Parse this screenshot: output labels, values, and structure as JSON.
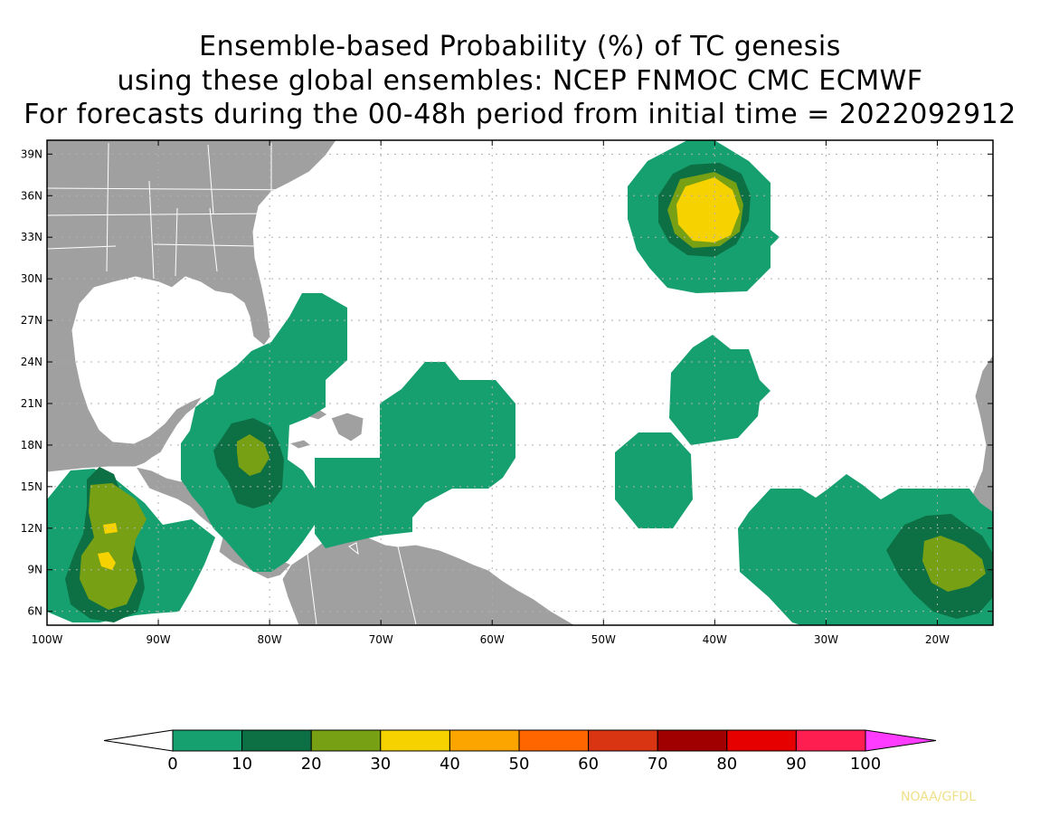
{
  "titles": {
    "line1": "Ensemble-based Probability (%) of TC genesis",
    "line2": "using these global ensembles:   NCEP FNMOC CMC ECMWF",
    "line3": "For forecasts during the 00-48h period from initial time = 2022092912"
  },
  "map": {
    "lon_range": [
      -100,
      -15
    ],
    "lat_range": [
      5,
      40
    ],
    "lat_ticks": [
      {
        "value": 39,
        "label": "39N"
      },
      {
        "value": 36,
        "label": "36N"
      },
      {
        "value": 33,
        "label": "33N"
      },
      {
        "value": 30,
        "label": "30N"
      },
      {
        "value": 27,
        "label": "27N"
      },
      {
        "value": 24,
        "label": "24N"
      },
      {
        "value": 21,
        "label": "21N"
      },
      {
        "value": 18,
        "label": "18N"
      },
      {
        "value": 15,
        "label": "15N"
      },
      {
        "value": 12,
        "label": "12N"
      },
      {
        "value": 9,
        "label": "9N"
      },
      {
        "value": 6,
        "label": "6N"
      }
    ],
    "lon_ticks": [
      {
        "value": -100,
        "label": "100W"
      },
      {
        "value": -90,
        "label": "90W"
      },
      {
        "value": -80,
        "label": "80W"
      },
      {
        "value": -70,
        "label": "70W"
      },
      {
        "value": -60,
        "label": "60W"
      },
      {
        "value": -50,
        "label": "50W"
      },
      {
        "value": -40,
        "label": "40W"
      },
      {
        "value": -30,
        "label": "30W"
      },
      {
        "value": -20,
        "label": "20W"
      }
    ],
    "land_color": "#a0a0a0",
    "grid": "dotted"
  },
  "colorbar": {
    "labels": [
      "0",
      "10",
      "20",
      "30",
      "40",
      "50",
      "60",
      "70",
      "80",
      "90",
      "100"
    ],
    "colors": [
      "#17a06f",
      "#0c7044",
      "#78a014",
      "#f5d200",
      "#fca400",
      "#ff6600",
      "#d93512",
      "#a00000",
      "#e60000",
      "#ff1e50"
    ],
    "under_color": "#ffffff",
    "over_color": "#ff3cff"
  },
  "probability_levels": {
    "10": "#17a06f",
    "20": "#0c7044",
    "30": "#78a014",
    "40": "#f5d200"
  },
  "credit": "NOAA/GFDL"
}
